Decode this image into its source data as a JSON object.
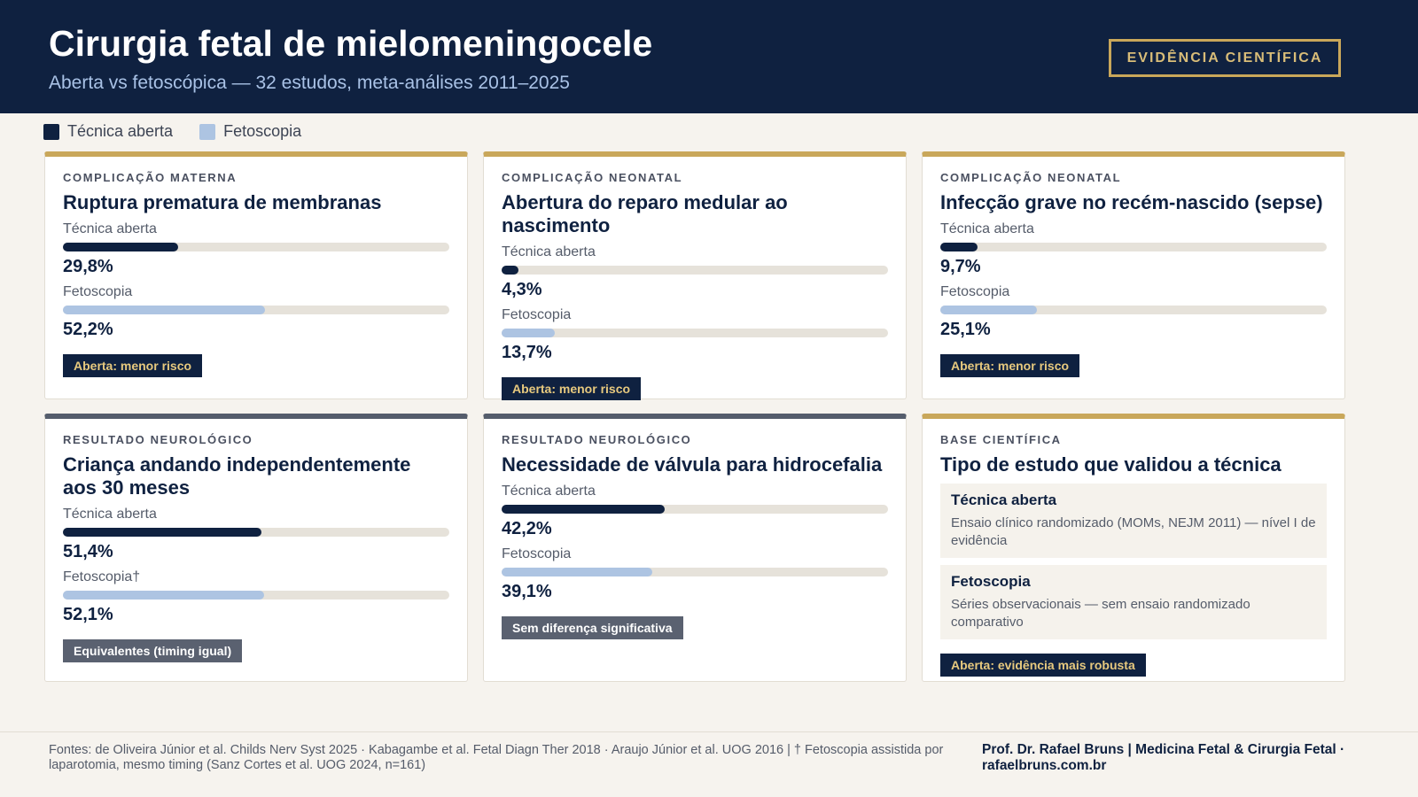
{
  "header": {
    "title": "Cirurgia fetal de mielomeningocele",
    "subtitle": "Aberta vs fetoscópica — 32 estudos, meta-análises 2011–2025",
    "badge": "EVIDÊNCIA CIENTÍFICA"
  },
  "legend": [
    {
      "name": "Técnica aberta",
      "color": "#0f2140"
    },
    {
      "name": "Fetoscopia",
      "color": "#adc4e2"
    }
  ],
  "cards": [
    {
      "category": "COMPLICAÇÃO MATERNA",
      "title": "Ruptura prematura de membranas",
      "accent": "#c9a75a",
      "xlim": [
        0,
        100
      ],
      "series": [
        {
          "name": "Técnica aberta",
          "value": 29.8,
          "value_label": "29,8%"
        },
        {
          "name": "Fetoscopia",
          "value": 52.2,
          "value_label": "52,2%"
        }
      ],
      "badge": {
        "text": "Aberta: menor risco",
        "style": "dark"
      }
    },
    {
      "category": "COMPLICAÇÃO NEONATAL",
      "title": "Abertura do reparo medular ao nascimento",
      "accent": "#c9a75a",
      "xlim": [
        0,
        100
      ],
      "series": [
        {
          "name": "Técnica aberta",
          "value": 4.3,
          "value_label": "4,3%"
        },
        {
          "name": "Fetoscopia",
          "value": 13.7,
          "value_label": "13,7%"
        }
      ],
      "badge": {
        "text": "Aberta: menor risco",
        "style": "dark"
      }
    },
    {
      "category": "COMPLICAÇÃO NEONATAL",
      "title": "Infecção grave no recém-nascido (sepse)",
      "accent": "#c9a75a",
      "xlim": [
        0,
        100
      ],
      "series": [
        {
          "name": "Técnica aberta",
          "value": 9.7,
          "value_label": "9,7%"
        },
        {
          "name": "Fetoscopia",
          "value": 25.1,
          "value_label": "25,1%"
        }
      ],
      "badge": {
        "text": "Aberta: menor risco",
        "style": "dark"
      }
    },
    {
      "category": "RESULTADO NEUROLÓGICO",
      "title": "Criança andando independentemente aos 30 meses",
      "accent": "#555d6c",
      "xlim": [
        0,
        100
      ],
      "series": [
        {
          "name": "Técnica aberta",
          "value": 51.4,
          "value_label": "51,4%"
        },
        {
          "name": "Fetoscopia†",
          "value": 52.1,
          "value_label": "52,1%"
        }
      ],
      "badge": {
        "text": "Equivalentes (timing igual)",
        "style": "gray"
      }
    },
    {
      "category": "RESULTADO NEUROLÓGICO",
      "title": "Necessidade de válvula para hidrocefalia",
      "accent": "#555d6c",
      "xlim": [
        0,
        100
      ],
      "series": [
        {
          "name": "Técnica aberta",
          "value": 42.2,
          "value_label": "42,2%"
        },
        {
          "name": "Fetoscopia",
          "value": 39.1,
          "value_label": "39,1%"
        }
      ],
      "badge": {
        "text": "Sem diferença significativa",
        "style": "gray"
      }
    },
    {
      "category": "BASE CIENTÍFICA",
      "title": "Tipo de estudo que validou a técnica",
      "accent": "#c9a75a",
      "items": [
        {
          "name": "Técnica aberta",
          "text": "Ensaio clínico randomizado (MOMs, NEJM 2011) — nível I de evidência"
        },
        {
          "name": "Fetoscopia",
          "text": "Séries observacionais — sem ensaio randomizado comparativo"
        }
      ],
      "badge": {
        "text": "Aberta: evidência mais robusta",
        "style": "dark"
      }
    }
  ],
  "footer": {
    "sources": "Fontes: de Oliveira Júnior et al. Childs Nerv Syst 2025 · Kabagambe et al. Fetal Diagn Ther 2018 · Araujo Júnior et al. UOG 2016 | † Fetoscopia assistida por laparotomia, mesmo timing (Sanz Cortes et al. UOG 2024, n=161)",
    "author": "Prof. Dr. Rafael Bruns | Medicina Fetal & Cirurgia Fetal · rafaelbruns.com.br"
  }
}
